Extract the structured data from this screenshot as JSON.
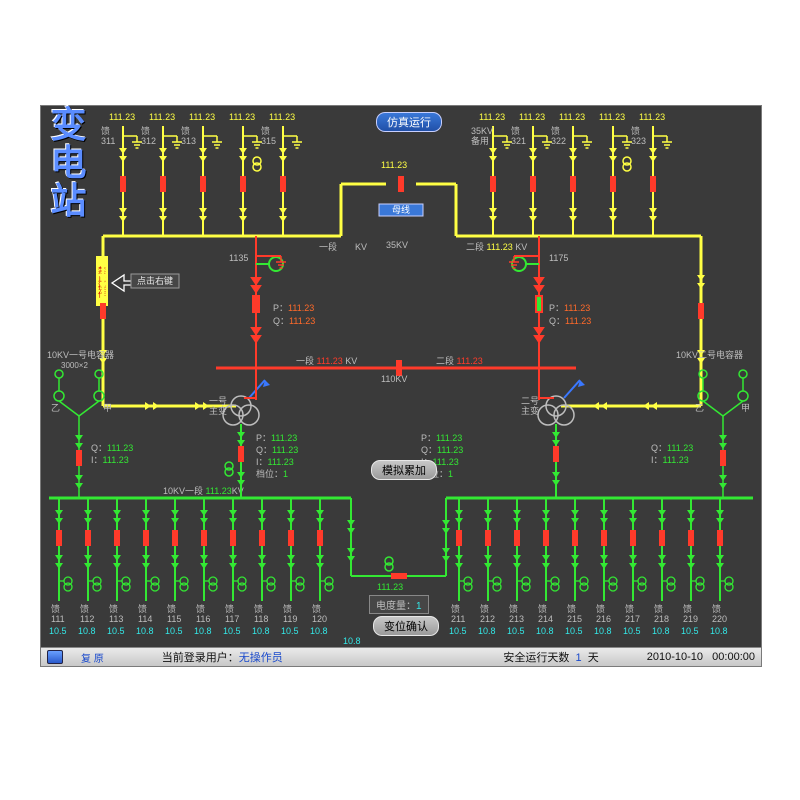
{
  "title_vertical": "变\n电\n站",
  "top_button": "仿真运行",
  "confirm_button": "变位确认",
  "bus_35kv": {
    "label": "35KV",
    "color": "#ffff44"
  },
  "bus_110kv": {
    "label": "110KV",
    "color": "#ff3a2a"
  },
  "bus_10kv": {
    "label": "10KV",
    "color": "#33e833"
  },
  "breaker_closed_color": "#ff3a2a",
  "breaker_open_color": "#33e833",
  "no_op_label": "禁止操作",
  "hint_label": "点击右键",
  "mother_label": "母线",
  "top_feeders": {
    "left": [
      {
        "v": "111.23",
        "name": "馈\n311"
      },
      {
        "v": "111.23",
        "name": "馈\n312"
      },
      {
        "v": "111.23",
        "name": "馈\n313"
      },
      {
        "v": "111.23",
        "name": ""
      },
      {
        "v": "111.23",
        "name": "馈\n315"
      }
    ],
    "right": [
      {
        "v": "111.23",
        "name": "35KV\n备用"
      },
      {
        "v": "111.23",
        "name": "馈\n321"
      },
      {
        "v": "111.23",
        "name": "馈\n322"
      },
      {
        "v": "111.23",
        "name": ""
      },
      {
        "v": "111.23",
        "name": "馈\n323"
      }
    ]
  },
  "center_top_v": "111.23",
  "seg_labels": {
    "one": "一段",
    "two": "二段",
    "kv": "KV"
  },
  "seg2_v": "111.23",
  "xfmr_left": {
    "id": "1135",
    "P": "111.23",
    "Q": "111.23"
  },
  "xfmr_right": {
    "id": "1175",
    "P": "111.23",
    "Q": "111.23"
  },
  "mid_110": {
    "one_v": "111.23",
    "two_v": "111.23"
  },
  "xfmr_main": {
    "left": "一号\n主变",
    "right": "二号\n主变"
  },
  "cap_left": {
    "title": "10KV一号电容器",
    "sub": "3000×2",
    "a": "甲",
    "b": "乙"
  },
  "cap_right": {
    "title": "10KV二号电容器",
    "a": "甲",
    "b": "乙"
  },
  "mid_pq": {
    "P": "111.23",
    "Q": "111.23",
    "I": "111.23",
    "tap": "档位：",
    "tap_v": "1"
  },
  "sim_add": "模拟累加",
  "bus10_label": "10KV一段",
  "bus10_v": "111.23KV",
  "cap_qi": {
    "Q": "111.23",
    "I": "111.23"
  },
  "bottom_feeders_left": [
    {
      "n": "馈\n111",
      "v": "10.5"
    },
    {
      "n": "馈\n112",
      "v": "10.8"
    },
    {
      "n": "馈\n113",
      "v": "10.5"
    },
    {
      "n": "馈\n114",
      "v": "10.8"
    },
    {
      "n": "馈\n115",
      "v": "10.5"
    },
    {
      "n": "馈\n116",
      "v": "10.8"
    },
    {
      "n": "馈\n117",
      "v": "10.5"
    },
    {
      "n": "馈\n118",
      "v": "10.8"
    },
    {
      "n": "馈\n119",
      "v": "10.5"
    },
    {
      "n": "馈\n120",
      "v": "10.8"
    }
  ],
  "bottom_feeders_right": [
    {
      "n": "馈\n211",
      "v": "10.5"
    },
    {
      "n": "馈\n212",
      "v": "10.8"
    },
    {
      "n": "馈\n213",
      "v": "10.5"
    },
    {
      "n": "馈\n214",
      "v": "10.8"
    },
    {
      "n": "馈\n215",
      "v": "10.5"
    },
    {
      "n": "馈\n216",
      "v": "10.8"
    },
    {
      "n": "馈\n217",
      "v": "10.5"
    },
    {
      "n": "馈\n218",
      "v": "10.8"
    },
    {
      "n": "馈\n219",
      "v": "10.5"
    },
    {
      "n": "馈\n220",
      "v": "10.8"
    }
  ],
  "center_bottom_v": "111.23",
  "center_tail_v": "10.8",
  "energy": "电度量：",
  "energy_v": "1",
  "status": {
    "user_lbl": "当前登录用户：",
    "user": "无操作员",
    "days_lbl": "安全运行天数",
    "days": "1",
    "days_unit": "天",
    "date": "2010-10-10",
    "time": "00:00:00"
  },
  "style": {
    "feeder_label_color": "#bdbdbd",
    "value_yellow": "#ffff44",
    "value_cyan": "#33e8e8"
  }
}
